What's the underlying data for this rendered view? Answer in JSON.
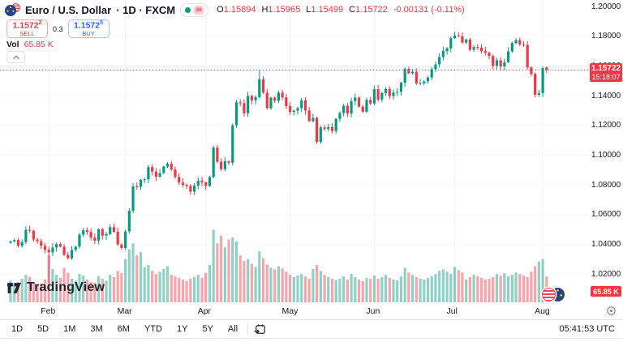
{
  "header": {
    "symbol_title": "Euro / U.S. Dollar",
    "sub": "· 1D · FXCM",
    "delay_badge": "20",
    "ohlc": {
      "o_label": "O",
      "o": "1.15894",
      "h_label": "H",
      "h": "1.15965",
      "l_label": "L",
      "l": "1.15499",
      "c_label": "C",
      "c": "1.15722",
      "change": "-0.00131 (-0.11%)"
    },
    "sell": {
      "price_main": "1.1572",
      "price_sup": "2",
      "label": "SELL"
    },
    "spread": "0.3",
    "buy": {
      "price_main": "1.1572",
      "price_sup": "5",
      "label": "BUY"
    },
    "volume_row": {
      "label": "Vol",
      "value": "65.85 K"
    }
  },
  "watermark": {
    "text": "TradingView"
  },
  "price_axis": {
    "ticks": [
      "1.20000",
      "1.18000",
      "1.16000",
      "1.14000",
      "1.12000",
      "1.10000",
      "1.08000",
      "1.06000",
      "1.04000",
      "1.02000"
    ],
    "tick_values": [
      1.2,
      1.18,
      1.16,
      1.14,
      1.12,
      1.1,
      1.08,
      1.06,
      1.04,
      1.02
    ],
    "price_badge": {
      "price": "1.15722",
      "countdown": "15:18:07"
    },
    "volume_badge": "65.85 K"
  },
  "time_axis": {
    "months": [
      {
        "label": "Feb",
        "i": 10
      },
      {
        "label": "Mar",
        "i": 30
      },
      {
        "label": "Apr",
        "i": 51
      },
      {
        "label": "May",
        "i": 73
      },
      {
        "label": "Jun",
        "i": 95
      },
      {
        "label": "Jul",
        "i": 116
      },
      {
        "label": "Aug",
        "i": 139
      }
    ]
  },
  "toolbar": {
    "ranges": [
      "1D",
      "5D",
      "1M",
      "3M",
      "6M",
      "YTD",
      "1Y",
      "5Y",
      "All"
    ],
    "clock": "05:41:53 UTC"
  },
  "colors": {
    "up": "#089981",
    "down": "#F23645",
    "vol_up": "rgba(8,153,129,0.45)",
    "vol_down": "rgba(242,54,69,0.45)",
    "grid_v": "#f0f3fa",
    "grid_h": "#eef1f6",
    "buy": "#2962FF",
    "sell": "#F23645",
    "badge": "#F23645",
    "text": "#131722",
    "muted": "#787b86"
  },
  "chart_data": {
    "type": "candlestick+volume",
    "title": "Euro / U.S. Dollar",
    "symbol": "EURUSD",
    "interval": "1D",
    "exchange": "FXCM",
    "x_range": [
      "2025-01-20",
      "2025-08-04"
    ],
    "ylim": [
      1.01,
      1.205
    ],
    "volume_unit": "K",
    "first_open": 1.041,
    "closes": [
      1.0419,
      1.0428,
      1.0389,
      1.0414,
      1.0497,
      1.0491,
      1.0432,
      1.0421,
      1.0389,
      1.0362,
      1.0345,
      1.0378,
      1.0401,
      1.0384,
      1.0328,
      1.0306,
      1.0362,
      1.0384,
      1.0465,
      1.0494,
      1.0483,
      1.0445,
      1.0424,
      1.05,
      1.0458,
      1.0468,
      1.0515,
      1.0484,
      1.0398,
      1.0375,
      1.0486,
      1.0625,
      1.0789,
      1.0786,
      1.0833,
      1.0837,
      1.0919,
      1.0889,
      1.0854,
      1.0879,
      1.0922,
      1.0942,
      1.0903,
      1.0853,
      1.0815,
      1.08,
      1.0792,
      1.0754,
      1.0794,
      1.0827,
      1.0816,
      1.0792,
      1.0852,
      1.105,
      1.0955,
      1.0905,
      1.0958,
      1.0948,
      1.1201,
      1.1355,
      1.1349,
      1.1281,
      1.1398,
      1.1368,
      1.139,
      1.151,
      1.142,
      1.1316,
      1.1387,
      1.1365,
      1.142,
      1.1388,
      1.1329,
      1.1291,
      1.1299,
      1.1316,
      1.1369,
      1.13,
      1.1228,
      1.125,
      1.1088,
      1.1186,
      1.1175,
      1.1188,
      1.1162,
      1.1244,
      1.1283,
      1.1332,
      1.128,
      1.1363,
      1.1387,
      1.1326,
      1.1292,
      1.1371,
      1.1347,
      1.1443,
      1.1373,
      1.1417,
      1.1444,
      1.1397,
      1.1421,
      1.1426,
      1.1487,
      1.158,
      1.155,
      1.1561,
      1.1482,
      1.1483,
      1.1496,
      1.1522,
      1.1578,
      1.161,
      1.166,
      1.17,
      1.1718,
      1.1786,
      1.1805,
      1.18,
      1.1757,
      1.1778,
      1.1709,
      1.1726,
      1.1723,
      1.17,
      1.1689,
      1.1666,
      1.16,
      1.1638,
      1.1596,
      1.1625,
      1.1697,
      1.1754,
      1.1774,
      1.1745,
      1.1741,
      1.159,
      1.1546,
      1.1406,
      1.1417,
      1.15853,
      1.15722
    ],
    "volumes": [
      55,
      48,
      52,
      60,
      70,
      65,
      50,
      45,
      48,
      58,
      120,
      85,
      70,
      62,
      88,
      75,
      60,
      55,
      72,
      68,
      58,
      52,
      50,
      66,
      60,
      55,
      70,
      64,
      80,
      74,
      110,
      135,
      150,
      120,
      128,
      90,
      95,
      80,
      72,
      78,
      85,
      92,
      70,
      66,
      62,
      58,
      54,
      60,
      64,
      70,
      62,
      75,
      95,
      185,
      150,
      170,
      140,
      160,
      165,
      155,
      120,
      105,
      110,
      98,
      90,
      130,
      112,
      96,
      88,
      84,
      92,
      86,
      78,
      70,
      64,
      68,
      72,
      66,
      60,
      85,
      95,
      80,
      70,
      64,
      60,
      56,
      60,
      66,
      58,
      72,
      64,
      58,
      54,
      62,
      60,
      68,
      60,
      64,
      70,
      62,
      58,
      56,
      66,
      88,
      76,
      70,
      64,
      60,
      58,
      62,
      66,
      72,
      80,
      84,
      78,
      72,
      90,
      82,
      76,
      58,
      64,
      70,
      66,
      62,
      58,
      60,
      64,
      72,
      68,
      74,
      66,
      70,
      76,
      72,
      68,
      64,
      78,
      92,
      104,
      110,
      65.85
    ],
    "ohlc_overrides": {
      "10": [
        1.0362,
        1.0385,
        1.0141,
        1.0345
      ],
      "65": [
        1.139,
        1.1573,
        1.138,
        1.151
      ],
      "116": [
        1.1786,
        1.1829,
        1.1781,
        1.1805
      ],
      "138": [
        1.1406,
        1.144,
        1.1391,
        1.1417
      ],
      "139": [
        1.1417,
        1.1597,
        1.1392,
        1.15853
      ],
      "140": [
        1.15894,
        1.15965,
        1.15499,
        1.15722
      ]
    },
    "current": {
      "open": 1.15894,
      "high": 1.15965,
      "low": 1.15499,
      "close": 1.15722,
      "change": -0.00131,
      "change_pct": -0.11,
      "volume_k": 65.85
    }
  }
}
